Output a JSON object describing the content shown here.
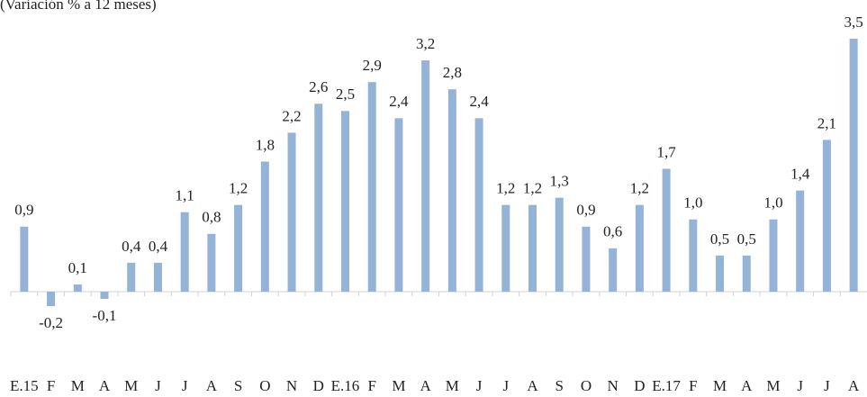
{
  "chart_data": {
    "type": "bar",
    "subtitle": "(Variación % a 12 meses)",
    "categories": [
      "E.15",
      "F",
      "M",
      "A",
      "M",
      "J",
      "J",
      "A",
      "S",
      "O",
      "N",
      "D",
      "E.16",
      "F",
      "M",
      "A",
      "M",
      "J",
      "J",
      "A",
      "S",
      "O",
      "N",
      "D",
      "E.17",
      "F",
      "M",
      "A",
      "M",
      "J",
      "J",
      "A"
    ],
    "values": [
      0.9,
      -0.2,
      0.1,
      -0.1,
      0.4,
      0.4,
      1.1,
      0.8,
      1.2,
      1.8,
      2.2,
      2.6,
      2.5,
      2.9,
      2.4,
      3.2,
      2.8,
      2.4,
      1.2,
      1.2,
      1.3,
      0.9,
      0.6,
      1.2,
      1.7,
      1.0,
      0.5,
      0.5,
      1.0,
      1.4,
      2.1,
      3.5
    ],
    "value_labels": [
      "0,9",
      "-0,2",
      "0,1",
      "-0,1",
      "0,4",
      "0,4",
      "1,1",
      "0,8",
      "1,2",
      "1,8",
      "2,2",
      "2,6",
      "2,5",
      "2,9",
      "2,4",
      "3,2",
      "2,8",
      "2,4",
      "1,2",
      "1,2",
      "1,3",
      "0,9",
      "0,6",
      "1,2",
      "1,7",
      "1,0",
      "0,5",
      "0,5",
      "1,0",
      "1,4",
      "2,1",
      "3,5"
    ],
    "color": "#95b3d7"
  }
}
